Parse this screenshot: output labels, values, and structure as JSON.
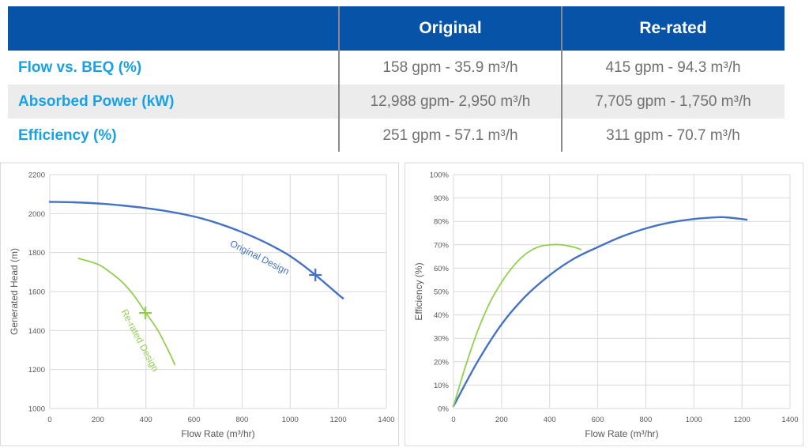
{
  "table": {
    "headers": [
      "",
      "Original",
      "Re-rated"
    ],
    "rows": [
      {
        "label": "Flow vs. BEQ (%)",
        "original": "158 gpm - 35.9 m³/h",
        "rerated": "415 gpm - 94.3 m³/h"
      },
      {
        "label": "Absorbed Power (kW)",
        "original": "12,988 gpm- 2,950 m³/h",
        "rerated": "7,705 gpm - 1,750 m³/h"
      },
      {
        "label": "Efficiency (%)",
        "original": "251 gpm - 57.1 m³/h",
        "rerated": "311 gpm - 70.7 m³/h"
      }
    ],
    "colors": {
      "header_bg": "#0653a8",
      "label": "#1aa1e3",
      "value": "#707070",
      "stripe": "#ececec"
    }
  },
  "chart_data": [
    {
      "type": "line",
      "xlabel": "Flow Rate (m³/hr)",
      "ylabel": "Generated Head (m)",
      "xlim": [
        0,
        1400
      ],
      "ylim": [
        1000,
        2200
      ],
      "xticks": [
        0,
        200,
        400,
        600,
        800,
        1000,
        1200,
        1400
      ],
      "yticks": [
        1000,
        1200,
        1400,
        1600,
        1800,
        2000,
        2200
      ],
      "grid": true,
      "series": [
        {
          "name": "Original Design",
          "color": "#4472c4",
          "x": [
            0,
            100,
            200,
            300,
            400,
            500,
            600,
            700,
            800,
            900,
            1000,
            1100,
            1200,
            1220
          ],
          "y": [
            2060,
            2058,
            2052,
            2042,
            2028,
            2010,
            1985,
            1950,
            1905,
            1850,
            1782,
            1690,
            1585,
            1565
          ]
        },
        {
          "name": "Re-rated Design",
          "color": "#92d050",
          "x": [
            120,
            200,
            250,
            300,
            350,
            400,
            450,
            500,
            520
          ],
          "y": [
            1770,
            1740,
            1700,
            1650,
            1580,
            1490,
            1400,
            1280,
            1225
          ]
        }
      ],
      "markers": [
        {
          "series": "Original Design",
          "x": 1105,
          "y": 1685
        },
        {
          "series": "Re-rated Design",
          "x": 398,
          "y": 1490
        }
      ],
      "annotations": [
        {
          "text": "Original Design",
          "series": "Original Design"
        },
        {
          "text": "Re-rated Design",
          "series": "Re-rated Design"
        }
      ]
    },
    {
      "type": "line",
      "xlabel": "Flow Rate (m³/hr)",
      "ylabel": "Efficiency (%)",
      "xlim": [
        0,
        1400
      ],
      "ylim": [
        0,
        100
      ],
      "xticks": [
        0,
        200,
        400,
        600,
        800,
        1000,
        1200,
        1400
      ],
      "yticks": [
        0,
        10,
        20,
        30,
        40,
        50,
        60,
        70,
        80,
        90,
        100
      ],
      "ytick_suffix": "%",
      "grid": true,
      "series": [
        {
          "color": "#4472c4",
          "x": [
            0,
            100,
            200,
            300,
            400,
            500,
            600,
            700,
            800,
            900,
            1000,
            1100,
            1150,
            1200,
            1220
          ],
          "y": [
            1,
            20,
            36,
            48,
            57,
            64,
            69,
            73.5,
            77,
            79.5,
            81,
            81.8,
            81.6,
            81,
            80.7
          ]
        },
        {
          "color": "#92d050",
          "x": [
            0,
            50,
            100,
            150,
            200,
            250,
            300,
            350,
            400,
            450,
            500,
            530
          ],
          "y": [
            1,
            18,
            33,
            45,
            54,
            61,
            66,
            69,
            70,
            70,
            69,
            68
          ]
        }
      ]
    }
  ]
}
